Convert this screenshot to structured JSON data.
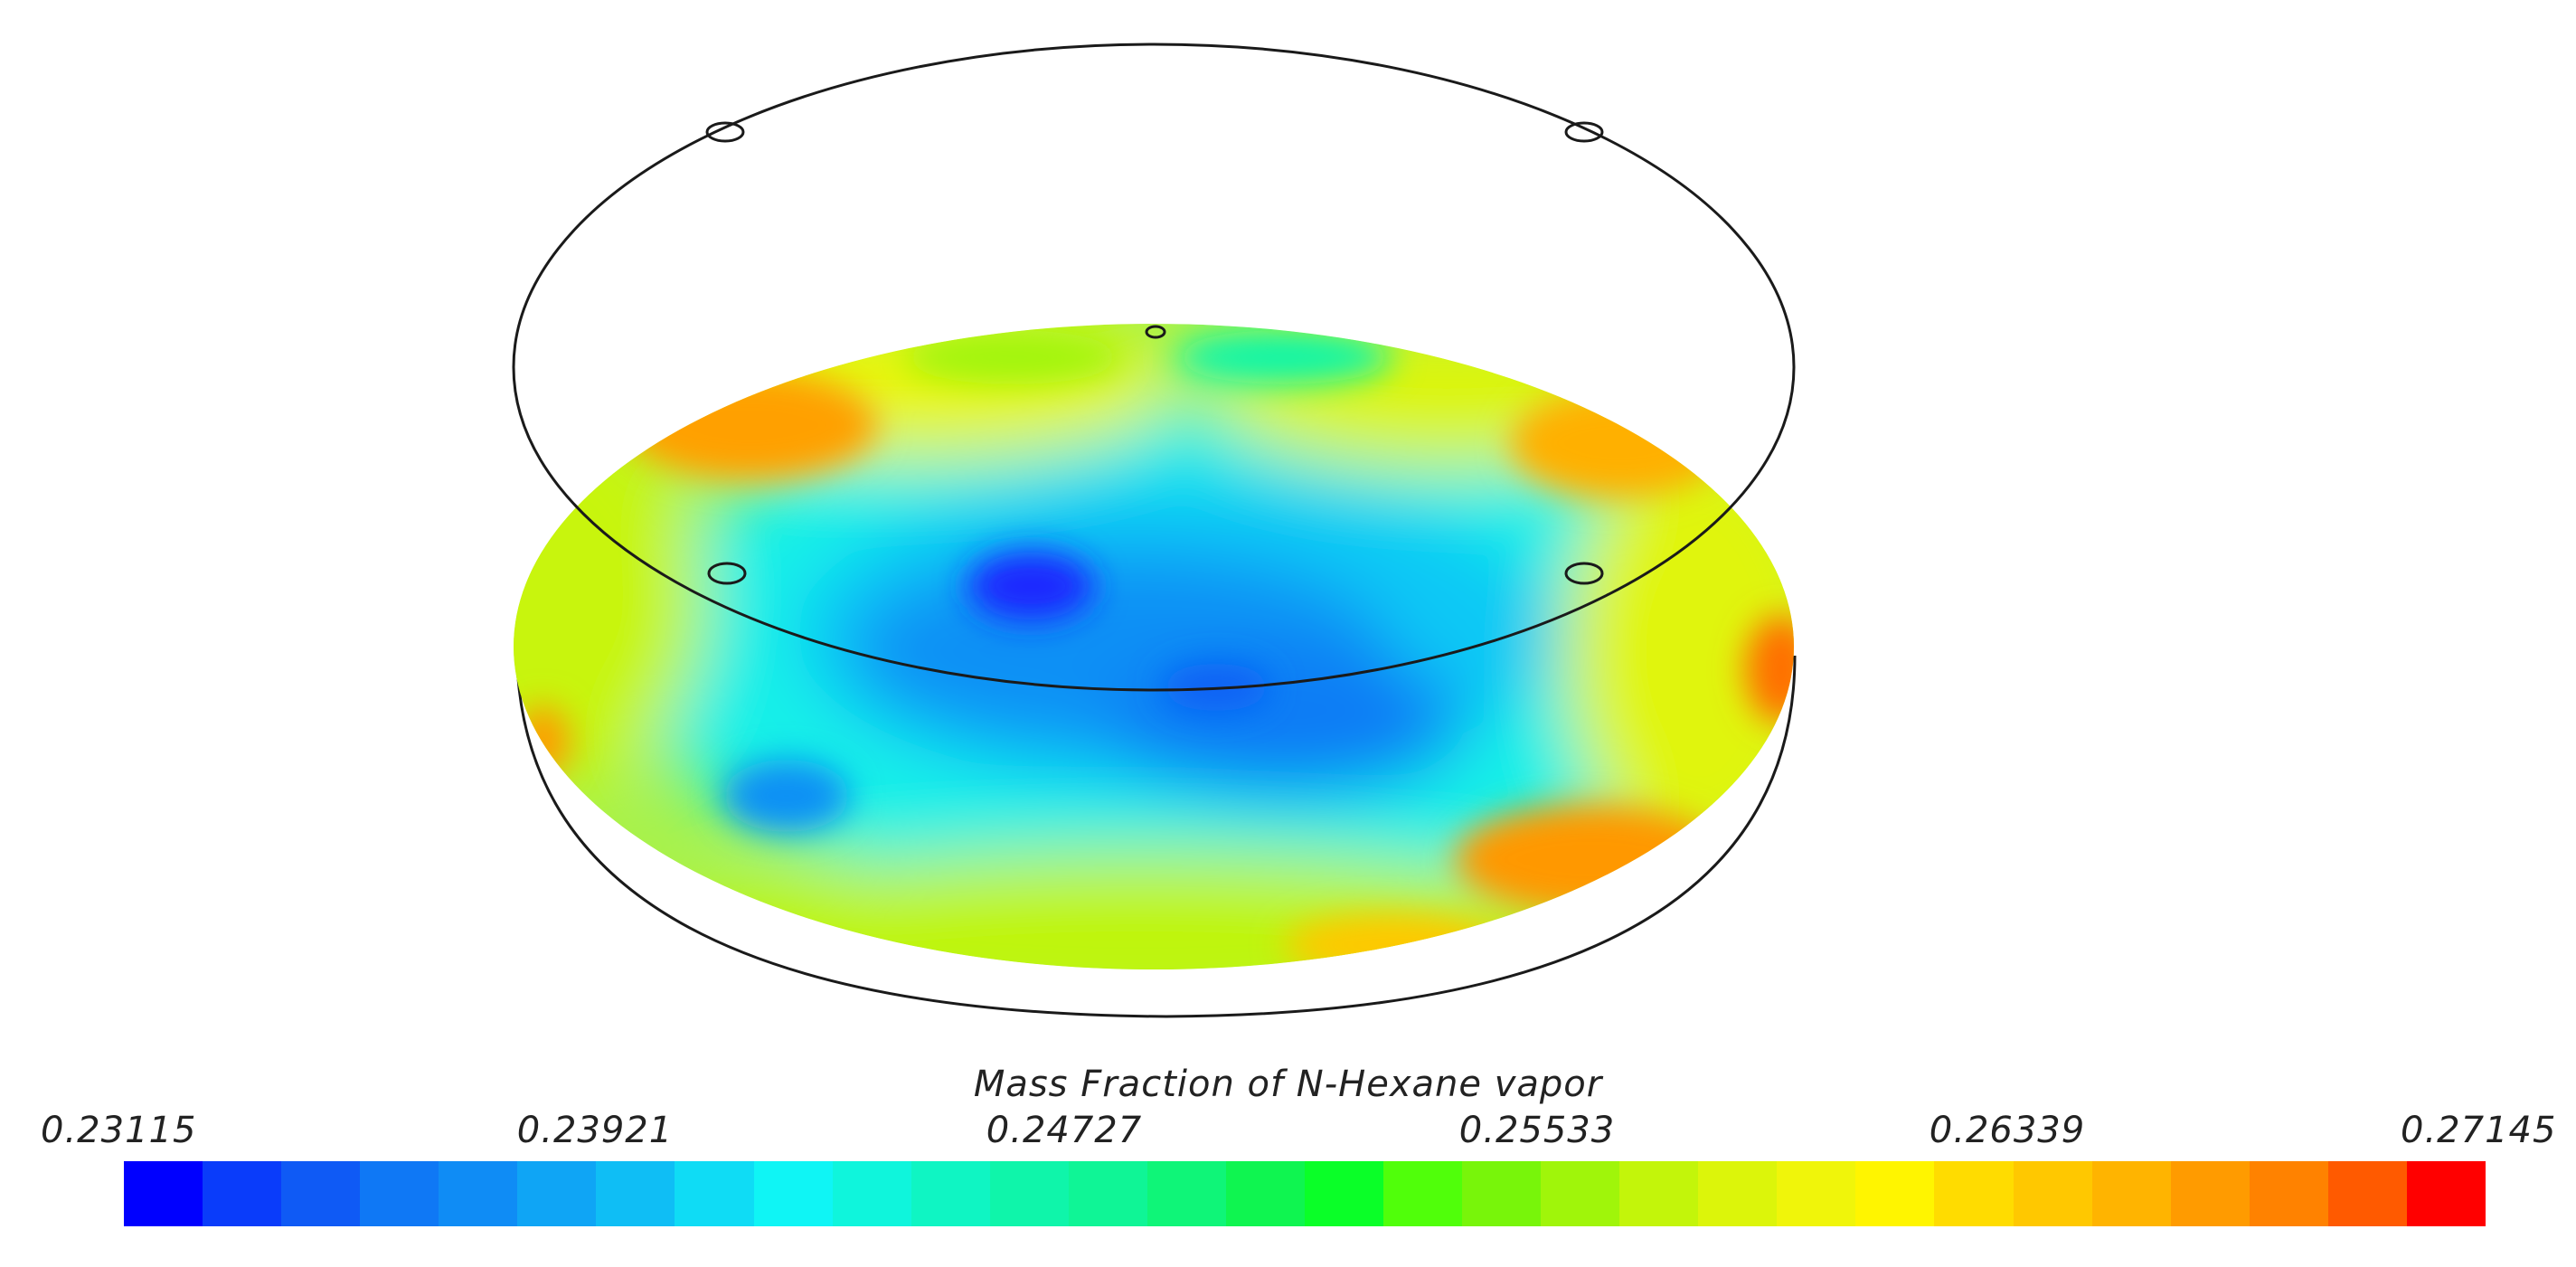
{
  "legend": {
    "title": "Mass Fraction of N-Hexane vapor",
    "ticks": [
      "0.23115",
      "0.23921",
      "0.24727",
      "0.25533",
      "0.26339",
      "0.27145"
    ],
    "min": 0.23115,
    "max": 0.27145,
    "colors": [
      "#0000ff",
      "#0a3cfa",
      "#0f5af5",
      "#0f78f5",
      "#0f8cf5",
      "#0fa5f5",
      "#0fbef5",
      "#0fdcf5",
      "#0ff5f5",
      "#0ff5dc",
      "#0ff5c3",
      "#0ff5aa",
      "#0ff596",
      "#0ff578",
      "#0ff550",
      "#0aff28",
      "#50ff0a",
      "#78f50a",
      "#a0f50a",
      "#c3f50a",
      "#dcf50a",
      "#f0f50a",
      "#fff500",
      "#ffdc00",
      "#ffc800",
      "#ffb400",
      "#ff9b00",
      "#ff8200",
      "#ff5a00",
      "#ff0000"
    ]
  },
  "field": {
    "quantity": "Mass Fraction of N-Hexane vapor",
    "low_spots": [
      "deep blue minimum left of center",
      "blue region center"
    ],
    "high_spots": [
      "orange/red patches along the rim"
    ]
  }
}
